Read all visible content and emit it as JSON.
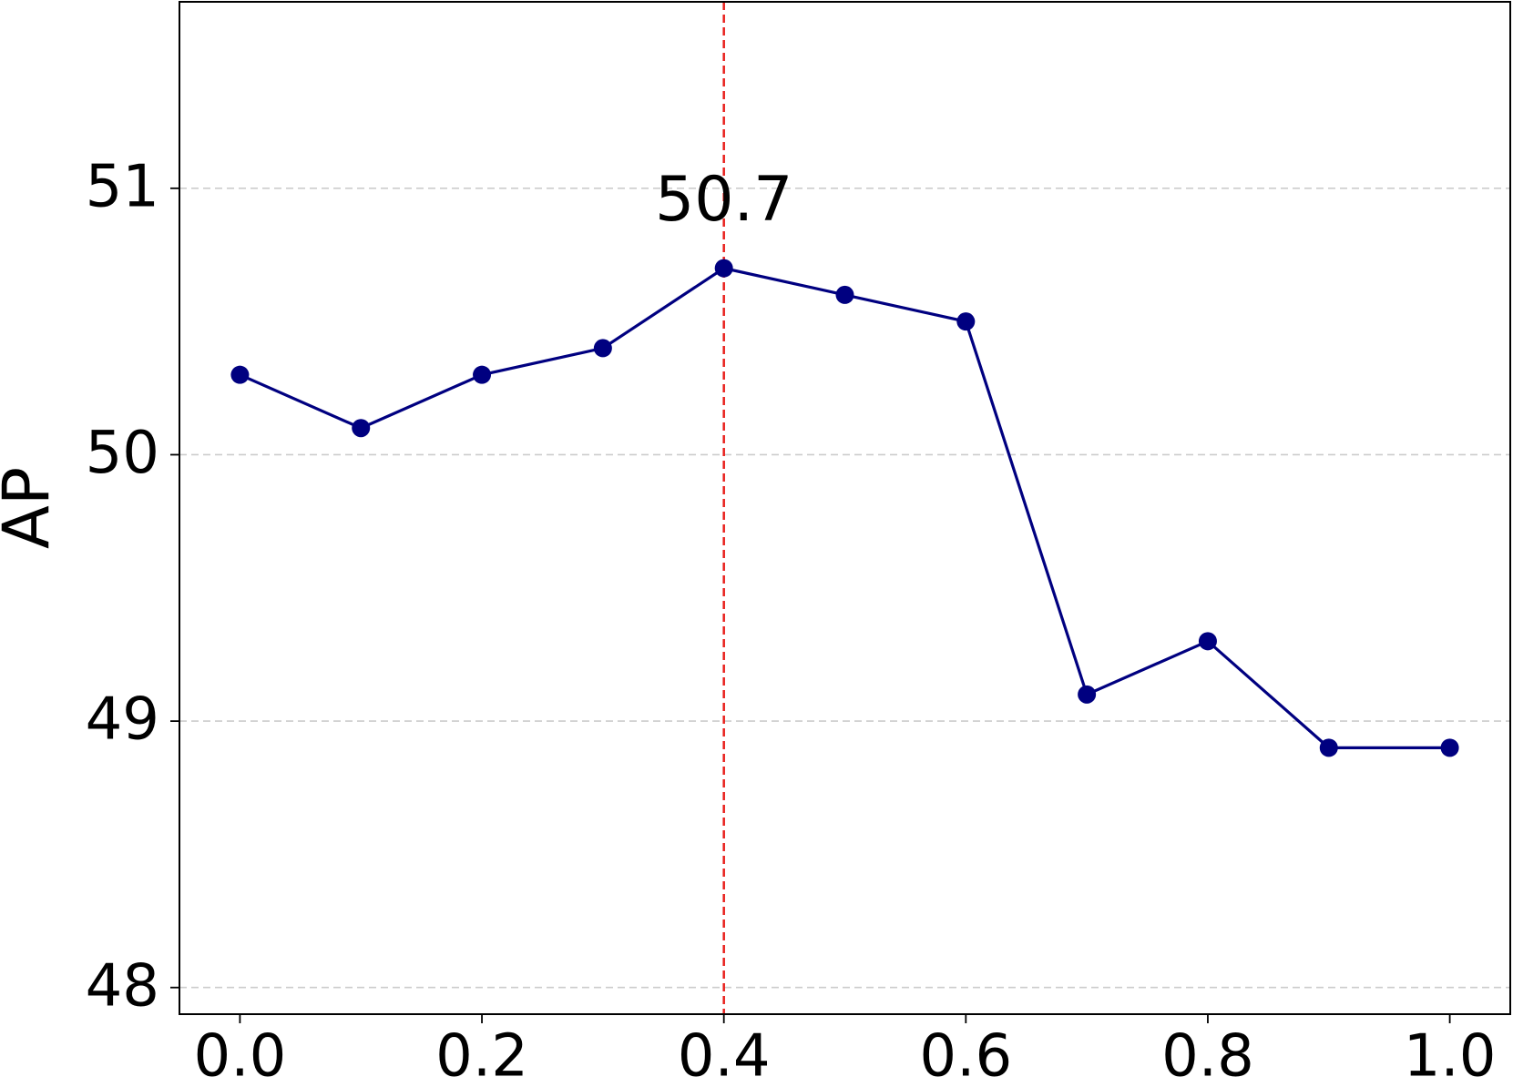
{
  "chart_data": {
    "type": "line",
    "y_label": "AP",
    "x": [
      0.0,
      0.1,
      0.2,
      0.3,
      0.4,
      0.5,
      0.6,
      0.7,
      0.8,
      0.9,
      1.0
    ],
    "series": [
      {
        "color": "#000080",
        "values": [
          50.3,
          50.1,
          50.3,
          50.4,
          50.7,
          50.6,
          50.5,
          49.1,
          49.3,
          48.9,
          48.9
        ]
      }
    ],
    "xlim": [
      -0.05,
      1.05
    ],
    "ylim": [
      47.9,
      51.7
    ],
    "xticks": [
      {
        "value": 0,
        "label": "0.0"
      },
      0.2,
      0.4,
      0.6,
      0.8,
      {
        "value": 1,
        "label": "1.0"
      }
    ],
    "yticks": [
      48,
      49,
      50,
      51
    ],
    "grid": true,
    "vline": {
      "x": 0.4,
      "color": "#e8201c"
    },
    "annotations": [
      {
        "text": "50.7",
        "x": 0.4,
        "y": 50.7
      }
    ]
  }
}
